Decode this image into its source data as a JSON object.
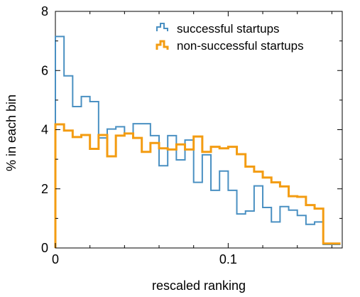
{
  "chart_data": {
    "type": "histogram",
    "title": "",
    "xlabel": "rescaled ranking",
    "ylabel": "% in each bin",
    "xlim": [
      0,
      0.166
    ],
    "ylim": [
      0,
      8
    ],
    "x_ticks": [
      0,
      0.1
    ],
    "x_tick_labels": [
      "0",
      "0.1"
    ],
    "y_ticks": [
      0,
      2,
      4,
      6,
      8
    ],
    "y_tick_labels": [
      "0",
      "2",
      "4",
      "6",
      "8"
    ],
    "bin_width": 0.005,
    "grid": false,
    "legend_position": "top-right",
    "series": [
      {
        "name": "successful startups",
        "color": "#4a90c2",
        "values": [
          7.15,
          5.82,
          4.78,
          5.12,
          4.95,
          3.72,
          4.02,
          4.1,
          3.87,
          4.2,
          4.2,
          3.8,
          2.78,
          3.8,
          2.98,
          3.65,
          2.22,
          3.15,
          1.95,
          2.6,
          1.95,
          1.15,
          1.25,
          2.1,
          1.37,
          0.88,
          1.4,
          1.28,
          1.1,
          0.8,
          0.88,
          0.12,
          0.12
        ]
      },
      {
        "name": "non-successful startups",
        "color": "#f39c12",
        "values": [
          4.18,
          3.97,
          3.75,
          3.82,
          3.35,
          3.82,
          3.1,
          3.8,
          3.87,
          3.72,
          3.25,
          3.55,
          3.37,
          3.33,
          3.5,
          3.33,
          3.77,
          3.25,
          3.42,
          3.37,
          3.42,
          3.17,
          2.75,
          2.58,
          2.38,
          2.22,
          2.08,
          1.75,
          1.73,
          1.45,
          1.33,
          0.15,
          0.15
        ]
      }
    ]
  }
}
